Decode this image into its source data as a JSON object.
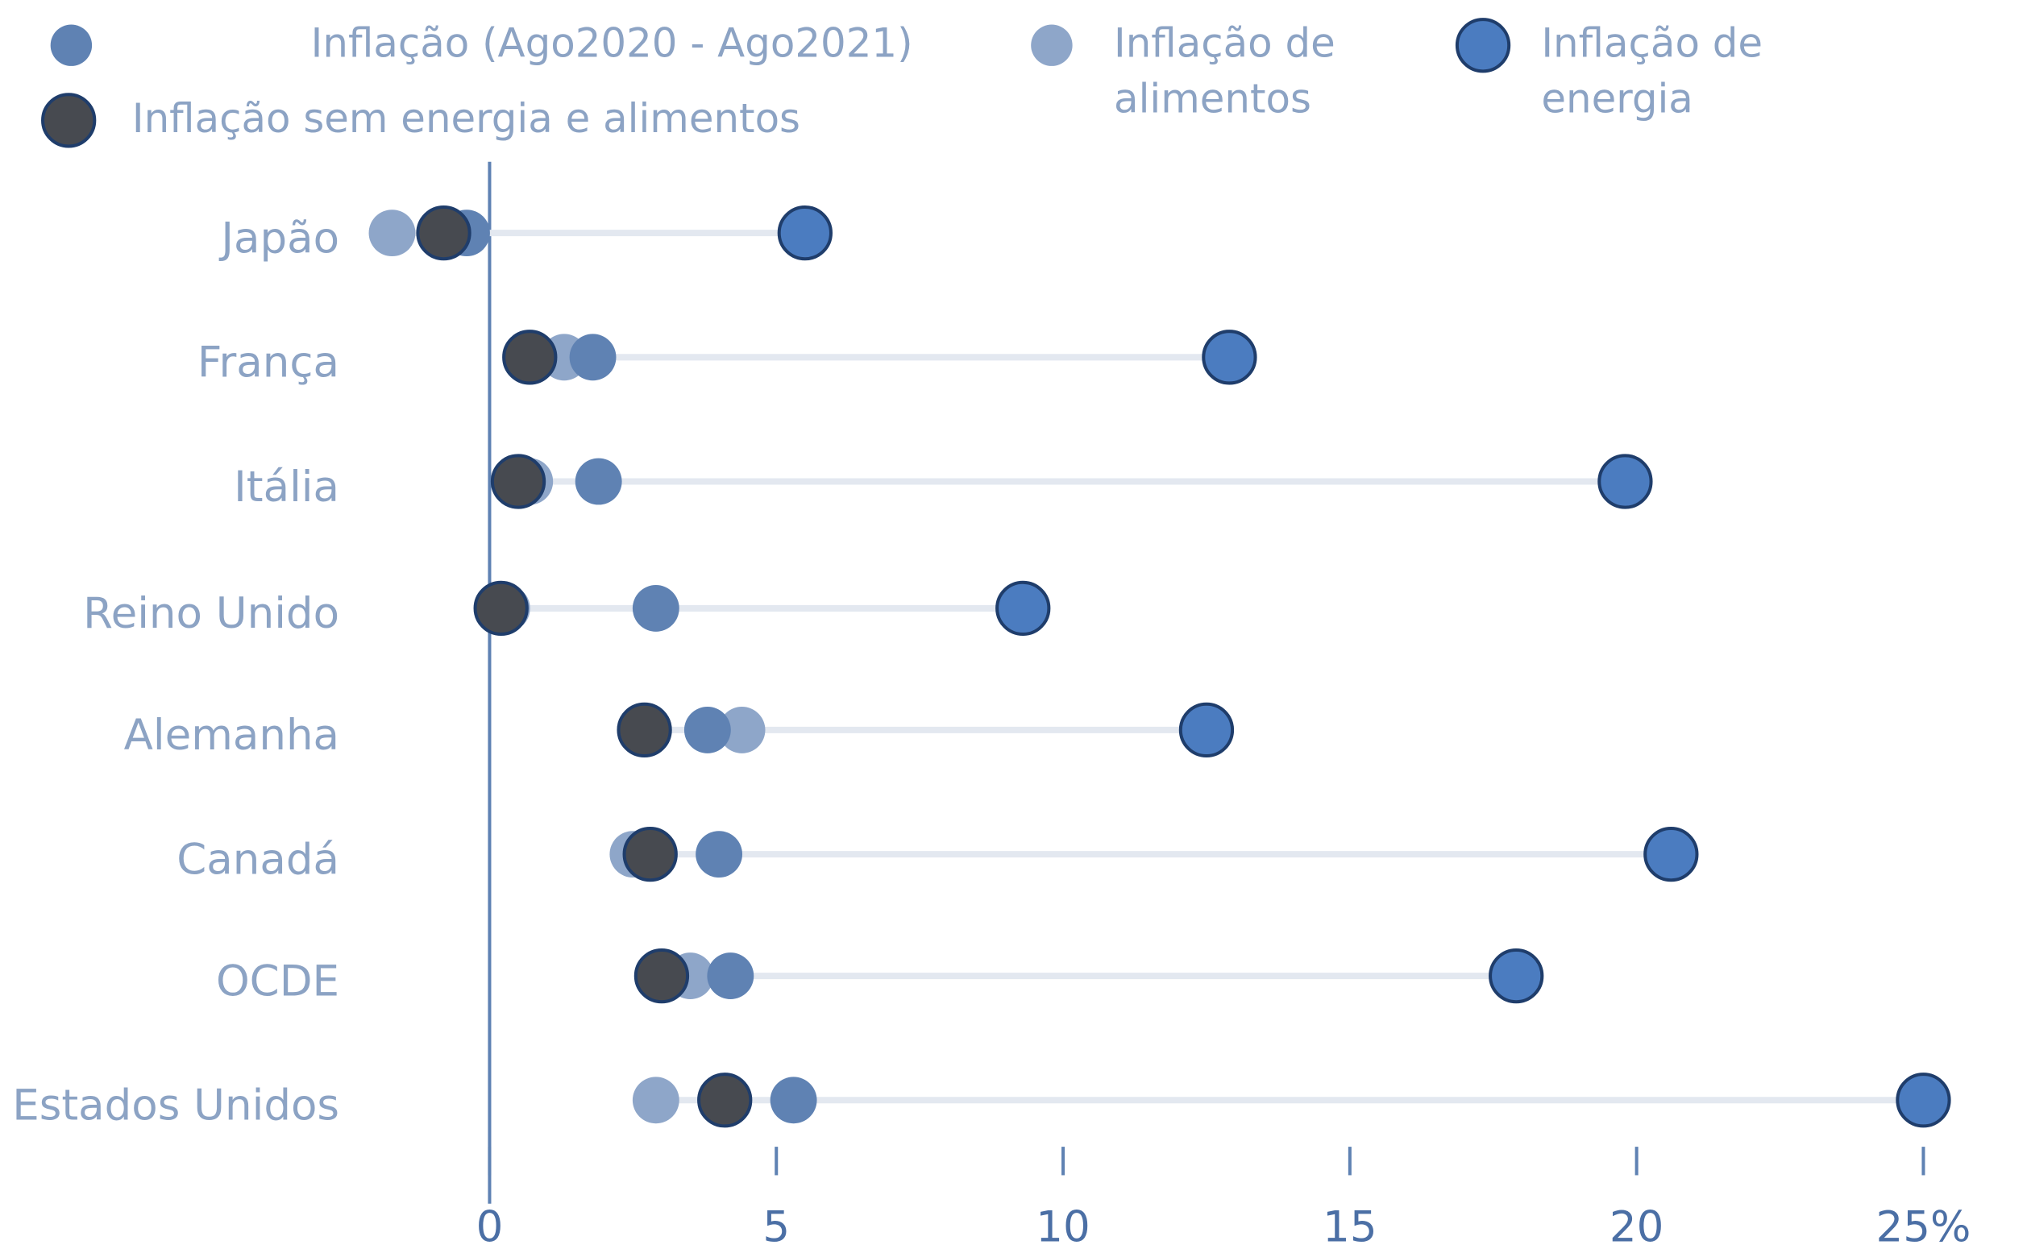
{
  "chart_data": {
    "type": "dot",
    "categories": [
      "Japão",
      "França",
      "Itália",
      "Reino Unido",
      "Alemanha",
      "Canadá",
      "OCDE",
      "Estados Unidos"
    ],
    "series": [
      {
        "name": "Inflação (Ago2020 - Ago2021)",
        "color": "#5f82b3",
        "values": [
          -0.4,
          1.8,
          1.9,
          2.9,
          3.8,
          4.0,
          4.2,
          5.3
        ]
      },
      {
        "name": "Inflação de alimentos",
        "color": "#8ea6c9",
        "values": [
          -1.7,
          1.3,
          0.7,
          0.3,
          4.4,
          2.5,
          3.5,
          2.9
        ]
      },
      {
        "name": "Inflação de energia",
        "color": "#4b7cc0",
        "edgecolor": "#1f3d6b",
        "values": [
          5.5,
          12.9,
          19.8,
          9.3,
          12.5,
          20.6,
          17.9,
          25.0
        ]
      },
      {
        "name": "Inflação sem energia e alimentos",
        "color": "#474a50",
        "edgecolor": "#1f3d6b",
        "values": [
          -0.8,
          0.7,
          0.5,
          0.2,
          2.7,
          2.8,
          3.0,
          4.1
        ]
      }
    ],
    "xlim": [
      0,
      25
    ],
    "xticks": [
      0,
      5,
      10,
      15,
      20,
      {
        "value": 25,
        "label": "25%"
      }
    ]
  }
}
